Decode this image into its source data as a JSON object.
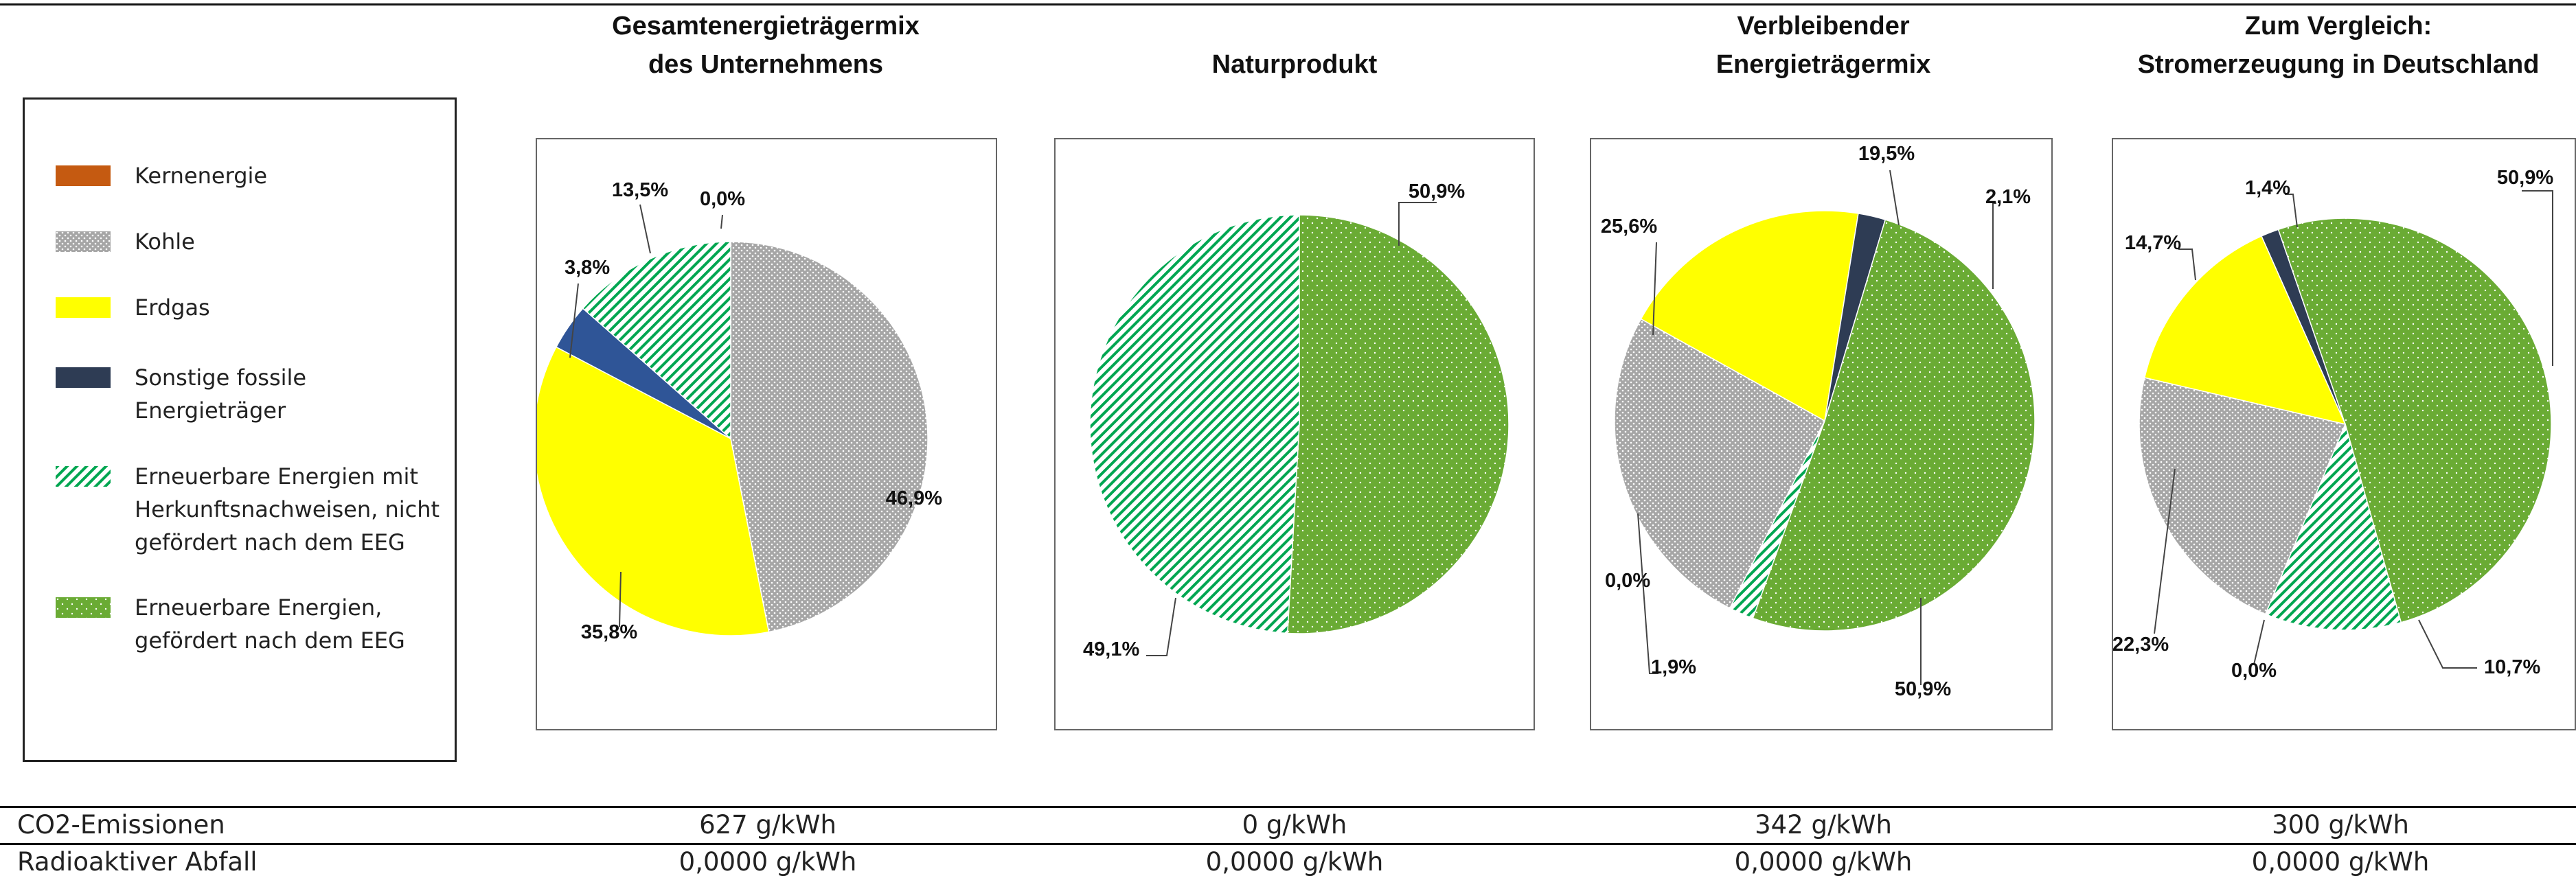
{
  "chart_data": [
    {
      "type": "pie",
      "title": "Gesamtenergieträgermix des Unternehmens",
      "title_lines": [
        "Gesamtenergieträgermix",
        "des Unternehmens"
      ],
      "slices": [
        {
          "category": "Kernenergie",
          "value": 0.0,
          "label": "0,0%"
        },
        {
          "category": "Kohle",
          "value": 46.9,
          "label": "46,9%"
        },
        {
          "category": "Erdgas",
          "value": 35.8,
          "label": "35,8%"
        },
        {
          "category": "Sonstige fossile Energieträger",
          "value": 3.8,
          "label": "3,8%"
        },
        {
          "category": "Erneuerbare Energien mit Herkunftsnachweisen, nicht gefördert nach dem EEG",
          "value": 13.5,
          "label": "13,5%"
        }
      ]
    },
    {
      "type": "pie",
      "title": "Naturprodukt",
      "title_lines": [
        "Naturprodukt"
      ],
      "slices": [
        {
          "category": "Erneuerbare Energien, gefördert nach dem EEG",
          "value": 50.9,
          "label": "50,9%"
        },
        {
          "category": "Erneuerbare Energien mit Herkunftsnachweisen, nicht gefördert nach dem EEG",
          "value": 49.1,
          "label": "49,1%"
        }
      ]
    },
    {
      "type": "pie",
      "title": "Verbleibender Energieträgermix",
      "title_lines": [
        "Verbleibender",
        "Energieträgermix"
      ],
      "slices": [
        {
          "category": "Kernenergie",
          "value": 0.0,
          "label": "0,0%"
        },
        {
          "category": "Erdgas",
          "value": 19.5,
          "label": "19,5%"
        },
        {
          "category": "Sonstige fossile Energieträger",
          "value": 2.1,
          "label": "2,1%"
        },
        {
          "category": "Erneuerbare Energien, gefördert nach dem EEG",
          "value": 50.9,
          "label": "50,9%"
        },
        {
          "category": "Erneuerbare Energien mit Herkunftsnachweisen, nicht gefördert nach dem EEG",
          "value": 1.9,
          "label": "1,9%"
        },
        {
          "category": "Kohle",
          "value": 25.6,
          "label": "25,6%"
        }
      ]
    },
    {
      "type": "pie",
      "title": "Zum Vergleich: Stromerzeugung in Deutschland",
      "title_lines": [
        "Zum Vergleich:",
        "Stromerzeugung in Deutschland"
      ],
      "slices": [
        {
          "category": "Sonstige fossile Energieträger",
          "value": 1.4,
          "label": "1,4%"
        },
        {
          "category": "Erneuerbare Energien, gefördert nach dem EEG",
          "value": 50.9,
          "label": "50,9%"
        },
        {
          "category": "Erneuerbare Energien mit Herkunftsnachweisen, nicht gefördert nach dem EEG",
          "value": 10.7,
          "label": "10,7%"
        },
        {
          "category": "Kernenergie",
          "value": 0.0,
          "label": "0,0%"
        },
        {
          "category": "Kohle",
          "value": 22.3,
          "label": "22,3%"
        },
        {
          "category": "Erdgas",
          "value": 14.7,
          "label": "14,7%"
        }
      ]
    }
  ],
  "legend": {
    "items": [
      {
        "key": "Kernenergie",
        "lines": [
          "Kernenergie"
        ],
        "color": "#C55A11",
        "pattern": "solid"
      },
      {
        "key": "Kohle",
        "lines": [
          "Kohle"
        ],
        "color": "#A6A6A6",
        "pattern": "dots"
      },
      {
        "key": "Erdgas",
        "lines": [
          "Erdgas"
        ],
        "color": "#FFFF00",
        "pattern": "solid"
      },
      {
        "key": "Sonstige fossile Energieträger",
        "lines": [
          "Sonstige fossile",
          "Energieträger"
        ],
        "color": "#2E3C54",
        "pattern": "solid"
      },
      {
        "key": "Erneuerbare Energien mit Herkunftsnachweisen, nicht gefördert nach dem EEG",
        "lines": [
          "Erneuerbare Energien mit",
          "Herkunftsnachweisen, nicht",
          "gefördert nach dem EEG"
        ],
        "color": "#00A651",
        "pattern": "stripes"
      },
      {
        "key": "Erneuerbare Energien, gefördert nach dem EEG",
        "lines": [
          "Erneuerbare Energien,",
          "gefördert nach dem EEG"
        ],
        "color": "#6AAB34",
        "pattern": "dots-light"
      }
    ]
  },
  "slice_colors": {
    "Kernenergie": "#C55A11",
    "Kohle": "#A6A6A6",
    "Erdgas": "#FFFF00",
    "Sonstige fossile Energieträger": "#2E3C54",
    "Erneuerbare Energien mit Herkunftsnachweisen, nicht gefördert nach dem EEG": "#00A651",
    "Erneuerbare Energien, gefördert nach dem EEG": "#6AAB34",
    "Sonstige blue (chart 1)": "#2F5597"
  },
  "table": {
    "rows": [
      {
        "label": "CO2-Emissionen",
        "values": [
          "627 g/kWh",
          "0 g/kWh",
          "342 g/kWh",
          "300 g/kWh"
        ]
      },
      {
        "label": "Radioaktiver Abfall",
        "values": [
          "0,0000 g/kWh",
          "0,0000 g/kWh",
          "0,0000 g/kWh",
          "0,0000 g/kWh"
        ]
      }
    ]
  }
}
